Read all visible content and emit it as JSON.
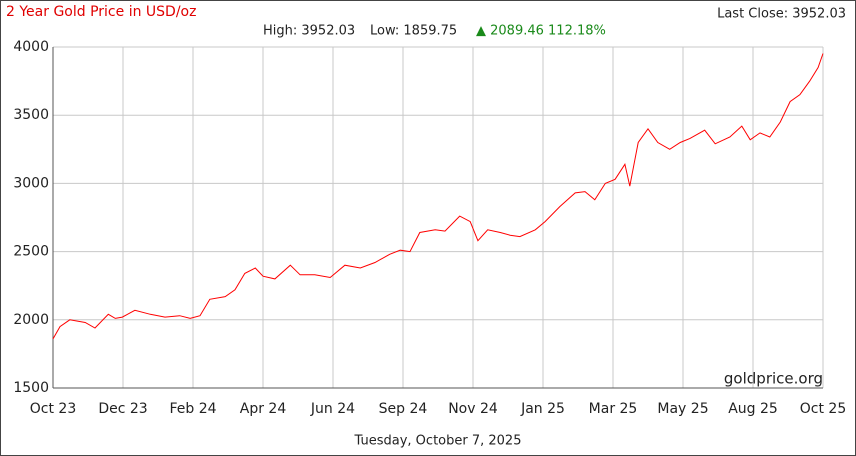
{
  "chart_data": {
    "type": "line",
    "title": "2 Year Gold Price in USD/oz",
    "last_close": "Last Close: 3952.03",
    "high": "High: 3952.03",
    "low": "Low: 1859.75",
    "change": "▲ 2089.46 112.18%",
    "watermark": "goldprice.org",
    "date_caption": "Tuesday, October 7, 2025",
    "x": [
      0,
      0.1,
      0.24,
      0.46,
      0.6,
      0.79,
      0.89,
      0.99,
      1.17,
      1.39,
      1.6,
      1.81,
      1.96,
      2.1,
      2.24,
      2.46,
      2.6,
      2.74,
      2.89,
      3,
      3.17,
      3.39,
      3.53,
      3.74,
      3.96,
      4.17,
      4.39,
      4.6,
      4.81,
      4.96,
      5.1,
      5.24,
      5.46,
      5.6,
      5.81,
      5.96,
      6.07,
      6.21,
      6.39,
      6.53,
      6.67,
      6.89,
      7.03,
      7.24,
      7.46,
      7.6,
      7.74,
      7.89,
      8.03,
      8.17,
      8.24,
      8.36,
      8.5,
      8.64,
      8.81,
      8.96,
      9.1,
      9.31,
      9.46,
      9.67,
      9.84,
      9.96,
      10.1,
      10.24,
      10.39,
      10.53,
      10.67,
      10.81,
      10.93,
      11
    ],
    "series": [
      {
        "color": "#ff0000",
        "values": [
          1860,
          1950,
          2000,
          1980,
          1940,
          2040,
          2010,
          2020,
          2070,
          2040,
          2020,
          2030,
          2010,
          2030,
          2150,
          2170,
          2220,
          2340,
          2380,
          2320,
          2300,
          2400,
          2330,
          2330,
          2310,
          2400,
          2380,
          2420,
          2480,
          2510,
          2500,
          2640,
          2660,
          2650,
          2760,
          2720,
          2580,
          2660,
          2640,
          2620,
          2610,
          2660,
          2720,
          2830,
          2930,
          2940,
          2880,
          3000,
          3030,
          3140,
          2980,
          3300,
          3400,
          3300,
          3250,
          3300,
          3330,
          3390,
          3290,
          3340,
          3420,
          3320,
          3370,
          3340,
          3450,
          3600,
          3650,
          3750,
          3850,
          3952.03
        ]
      }
    ],
    "xlim": [
      0,
      11
    ],
    "xticks": [
      {
        "value": 0,
        "label": "Oct 23"
      },
      {
        "value": 1,
        "label": "Dec 23"
      },
      {
        "value": 2,
        "label": "Feb 24"
      },
      {
        "value": 3,
        "label": "Apr 24"
      },
      {
        "value": 4,
        "label": "Jun 24"
      },
      {
        "value": 5,
        "label": "Sep 24"
      },
      {
        "value": 6,
        "label": "Nov 24"
      },
      {
        "value": 7,
        "label": "Jan 25"
      },
      {
        "value": 8,
        "label": "Mar 25"
      },
      {
        "value": 9,
        "label": "May 25"
      },
      {
        "value": 10,
        "label": "Aug 25"
      },
      {
        "value": 11,
        "label": "Oct 25"
      }
    ],
    "ylim": [
      1500,
      4000
    ],
    "yticks": [
      1500,
      2000,
      2500,
      3000,
      3500,
      4000
    ],
    "grid": true
  }
}
